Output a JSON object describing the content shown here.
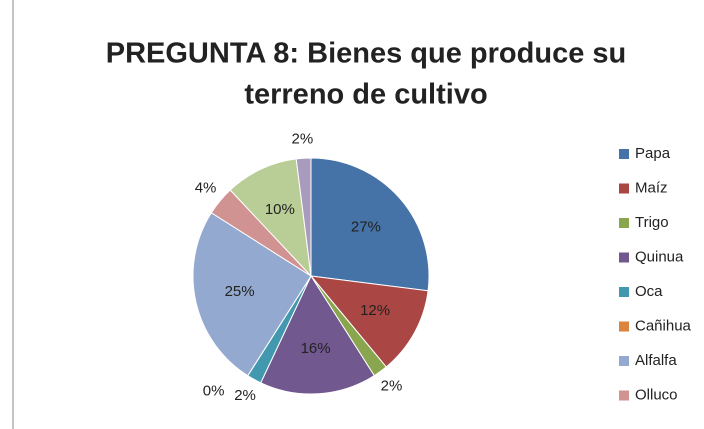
{
  "chart_data": {
    "type": "pie",
    "title": [
      "PREGUNTA 8: Bienes que produce su",
      "terreno de cultivo"
    ],
    "categories": [
      "Papa",
      "Maíz",
      "Trigo",
      "Quinua",
      "Oca",
      "Cañihua",
      "Alfalfa",
      "Olluco",
      null,
      null
    ],
    "values": [
      27,
      12,
      2,
      16,
      2,
      0,
      25,
      4,
      10,
      2
    ],
    "value_labels": [
      "27%",
      "12%",
      "2%",
      "16%",
      "2%",
      "0%",
      "25%",
      "4%",
      "10%",
      "2%"
    ],
    "colors": [
      "#4572a7",
      "#aa4643",
      "#89a54e",
      "#71588f",
      "#4198af",
      "#db843d",
      "#93a9cf",
      "#d19392",
      "#b9cd96",
      "#a99bbd"
    ],
    "legend": "right"
  }
}
